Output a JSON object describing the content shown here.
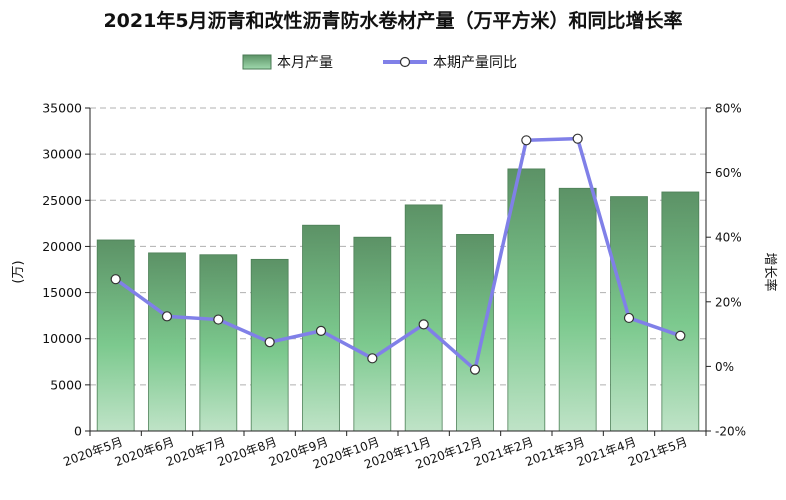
{
  "chart_data": {
    "type": "bar",
    "title": "2021年5月沥青和改性沥青防水卷材产量（万平方米）和同比增长率",
    "categories": [
      "2020年5月",
      "2020年6月",
      "2020年7月",
      "2020年8月",
      "2020年9月",
      "2020年10月",
      "2020年11月",
      "2020年12月",
      "2021年2月",
      "2021年3月",
      "2021年4月",
      "2021年5月"
    ],
    "series": [
      {
        "name": "本月产量",
        "type": "bar",
        "axis": "left",
        "values": [
          20700,
          19300,
          19100,
          18600,
          22300,
          21000,
          24500,
          21300,
          28400,
          26300,
          25400,
          25900
        ]
      },
      {
        "name": "本期产量同比",
        "type": "line",
        "axis": "right",
        "values": [
          27,
          15.5,
          14.5,
          7.5,
          11,
          2.5,
          13,
          -1,
          70,
          70.5,
          15,
          9.5
        ]
      }
    ],
    "ylabel": "(万)",
    "y2label": "增长率",
    "ylim": [
      0,
      35000
    ],
    "yticks": [
      0,
      5000,
      10000,
      15000,
      20000,
      25000,
      30000,
      35000
    ],
    "y2lim": [
      -20,
      80
    ],
    "y2ticks": [
      "-20%",
      "0%",
      "20%",
      "40%",
      "60%",
      "80%"
    ],
    "grid": true,
    "legend": "top-center",
    "colors": {
      "bar_top": "#5c9266",
      "bar_mid": "#7cc98e",
      "bar_bottom": "#bfe3c7",
      "line": "#8080e8",
      "marker_fill": "#ffffff",
      "marker_stroke": "#333333",
      "grid": "#b0b0b0"
    }
  }
}
